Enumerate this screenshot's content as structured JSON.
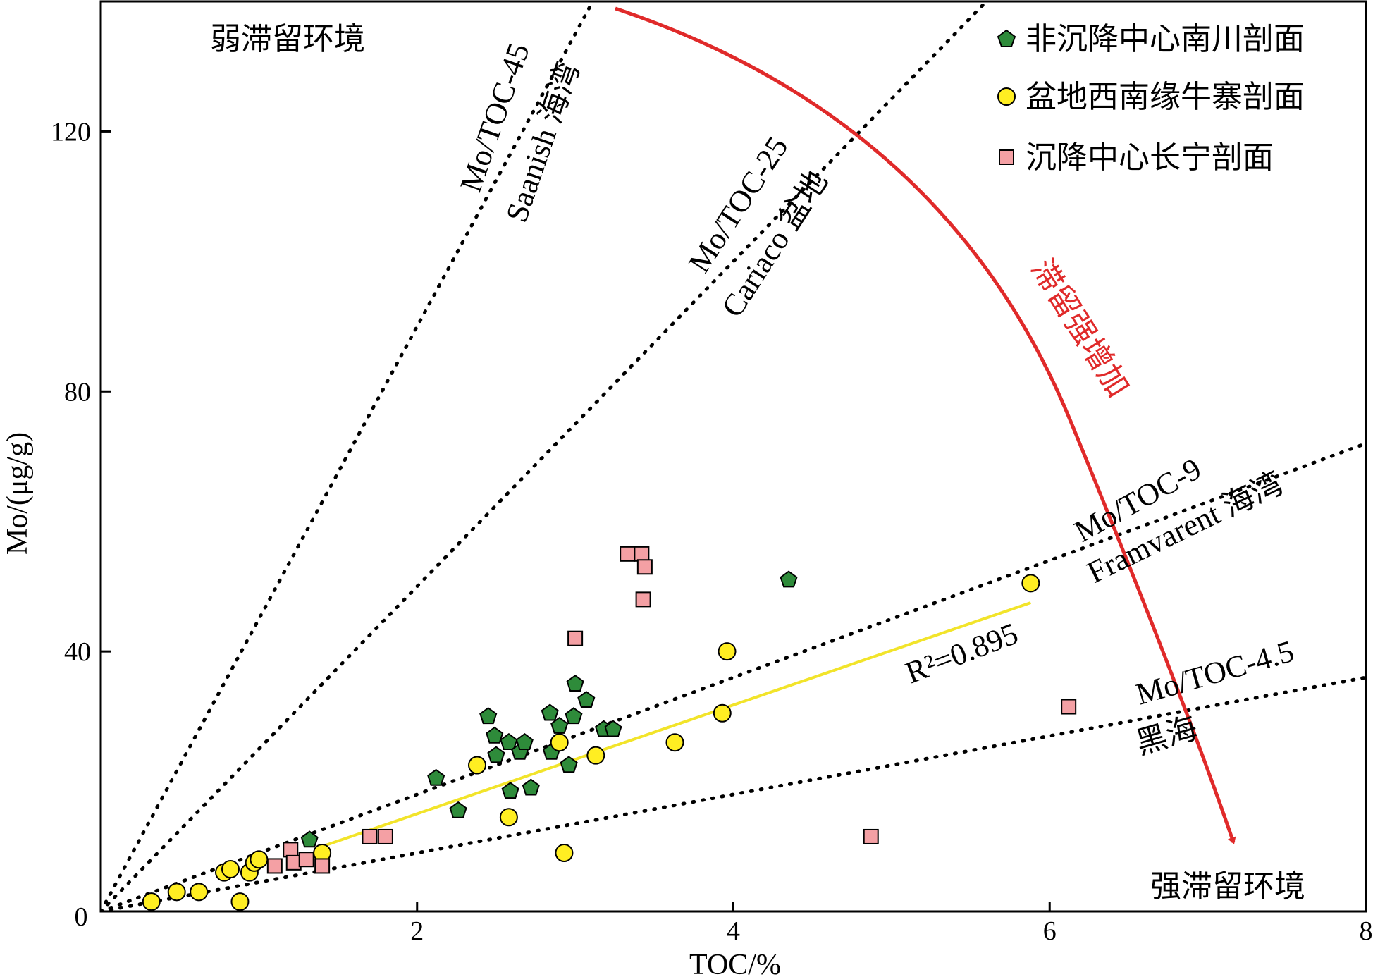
{
  "chart_data": {
    "type": "scatter",
    "xlabel": "TOC/%",
    "ylabel": "Mo/(μg/g)",
    "xlim": [
      0,
      8
    ],
    "ylim": [
      0,
      140
    ],
    "xticks": [
      2,
      4,
      6,
      8
    ],
    "yticks": [
      40,
      80,
      120
    ],
    "origin_label": "0",
    "grid": false,
    "legend_position": "top-right",
    "colors": {
      "pentagon": "#2e8b3a",
      "circle": "#ffee22",
      "square": "#f4a0a4",
      "arrow": "#e02a2a",
      "regression": "#f2e42a"
    },
    "series": [
      {
        "name": "非沉降中心南川剖面",
        "marker": "pentagon",
        "points": [
          [
            1.32,
            11.0
          ],
          [
            2.12,
            20.5
          ],
          [
            2.26,
            15.5
          ],
          [
            2.45,
            30.0
          ],
          [
            2.49,
            27.0
          ],
          [
            2.5,
            24.0
          ],
          [
            2.58,
            26.0
          ],
          [
            2.59,
            18.5
          ],
          [
            2.65,
            24.5
          ],
          [
            2.68,
            26.0
          ],
          [
            2.72,
            19.0
          ],
          [
            2.84,
            30.5
          ],
          [
            2.85,
            24.5
          ],
          [
            2.9,
            28.5
          ],
          [
            2.96,
            22.5
          ],
          [
            2.99,
            30.0
          ],
          [
            3.0,
            35.0
          ],
          [
            3.07,
            32.5
          ],
          [
            3.18,
            28.0
          ],
          [
            3.24,
            28.0
          ],
          [
            4.35,
            51.0
          ]
        ]
      },
      {
        "name": "盆地西南缘牛寨剖面",
        "marker": "circle",
        "points": [
          [
            0.32,
            1.5
          ],
          [
            0.48,
            3.0
          ],
          [
            0.62,
            3.0
          ],
          [
            0.78,
            6.0
          ],
          [
            0.82,
            6.5
          ],
          [
            0.88,
            1.5
          ],
          [
            0.94,
            6.0
          ],
          [
            0.97,
            7.5
          ],
          [
            1.0,
            8.0
          ],
          [
            1.4,
            9.0
          ],
          [
            2.38,
            22.5
          ],
          [
            2.58,
            14.5
          ],
          [
            2.9,
            26.0
          ],
          [
            2.93,
            9.0
          ],
          [
            3.13,
            24.0
          ],
          [
            3.63,
            26.0
          ],
          [
            3.93,
            30.5
          ],
          [
            3.96,
            40.0
          ],
          [
            5.88,
            50.5
          ]
        ]
      },
      {
        "name": "沉降中心长宁剖面",
        "marker": "square",
        "points": [
          [
            1.1,
            7.0
          ],
          [
            1.2,
            9.5
          ],
          [
            1.22,
            7.5
          ],
          [
            1.3,
            8.0
          ],
          [
            1.4,
            7.0
          ],
          [
            1.7,
            11.5
          ],
          [
            1.8,
            11.5
          ],
          [
            3.0,
            42.0
          ],
          [
            3.33,
            55.0
          ],
          [
            3.42,
            55.0
          ],
          [
            3.43,
            48.0
          ],
          [
            3.44,
            53.0
          ],
          [
            4.87,
            11.5
          ],
          [
            6.12,
            31.5
          ]
        ]
      }
    ],
    "regression": {
      "label": "R²=0.895",
      "x": [
        1.4,
        5.88
      ],
      "y": [
        10.0,
        47.5
      ]
    },
    "reference_lines": [
      {
        "label": "Mo/TOC-45",
        "sublabel": "Saanish 海湾",
        "slope": 45
      },
      {
        "label": "Mo/TOC-25",
        "sublabel": "Cariaco 盆地",
        "slope": 25
      },
      {
        "label": "Mo/TOC-9",
        "sublabel": "Framvarent 海湾",
        "slope": 9
      },
      {
        "label": "Mo/TOC-4.5",
        "sublabel": "黑海",
        "slope": 4.5
      }
    ],
    "annotations": {
      "weak": "弱滞留环境",
      "strong": "强滞留环境",
      "arrow": "滞留强增加"
    }
  }
}
